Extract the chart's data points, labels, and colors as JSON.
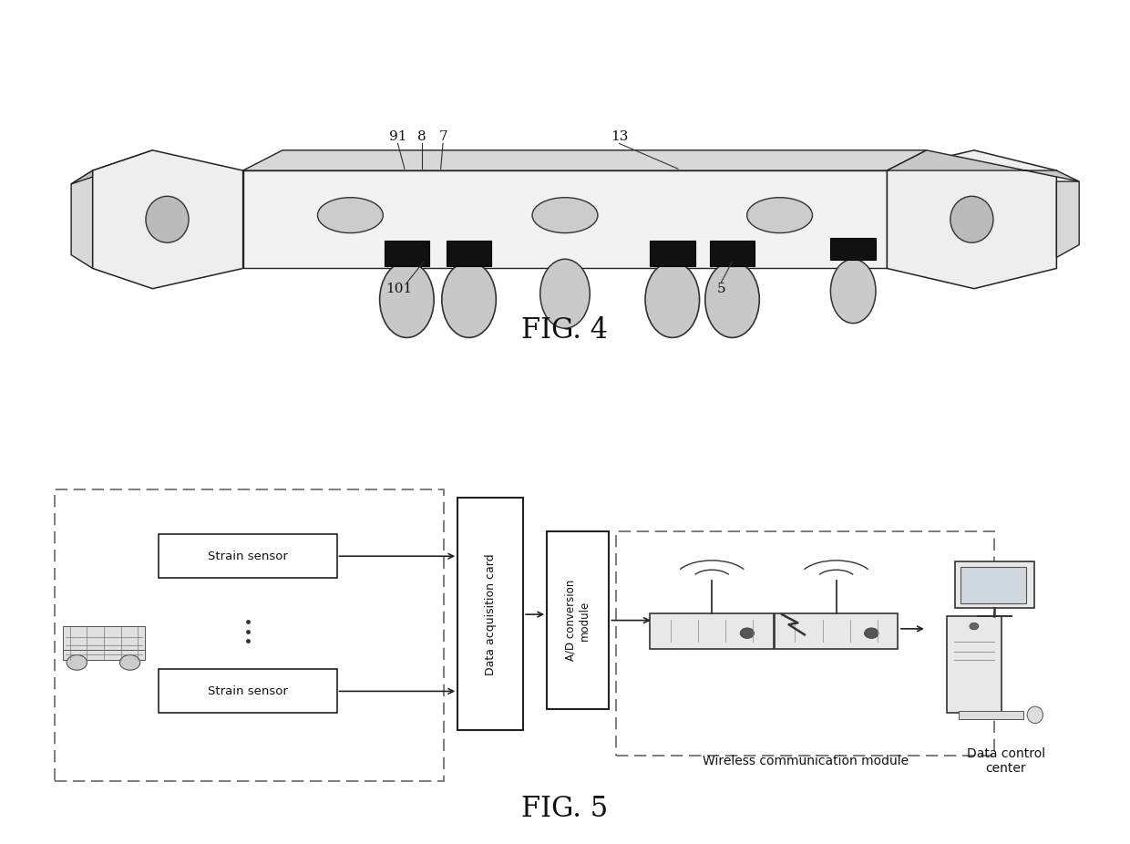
{
  "fig4_caption": "FIG. 4",
  "fig5_caption": "FIG. 5",
  "fig5_texts": {
    "strain_sensor_top": "Strain sensor",
    "strain_sensor_bot": "Strain sensor",
    "data_acq": "Data acquisition card",
    "ad_conv": "A/D conversion\nmodule",
    "wireless": "Wireless communication module",
    "data_control": "Data control\ncenter"
  },
  "bg_color": "#ffffff",
  "box_edge_color": "#000000",
  "dashed_color": "#555555"
}
